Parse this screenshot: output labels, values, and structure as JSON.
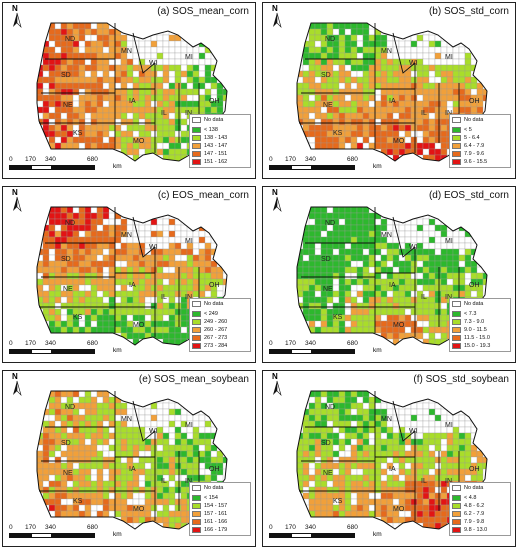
{
  "colors": {
    "c1": "#2db82d",
    "c2": "#a9dd2a",
    "c3": "#f1a03a",
    "c4": "#e66a1c",
    "c5": "#e21414",
    "nodata": "#ffffff",
    "border": "#111111",
    "county": "#9a9a9a"
  },
  "north_label": "N",
  "scale": {
    "ticks": [
      "0",
      "170",
      "340",
      "680"
    ],
    "unit": "km"
  },
  "state_labels": [
    "ND",
    "MN",
    "SD",
    "WI",
    "MI",
    "NE",
    "IA",
    "IL",
    "IN",
    "OH",
    "KS",
    "MO"
  ],
  "panels": [
    {
      "id": "a",
      "title": "(a) SOS_mean_corn",
      "legend": [
        "No data",
        "< 138",
        "138 - 143",
        "143 - 147",
        "147 - 151",
        "151 - 162"
      ],
      "pattern": "west_high"
    },
    {
      "id": "b",
      "title": "(b) SOS_std_corn",
      "legend": [
        "No data",
        "< 5",
        "5 - 6.4",
        "6.4 - 7.9",
        "7.9 - 9.6",
        "9.6 - 15.5"
      ],
      "pattern": "south_high"
    },
    {
      "id": "c",
      "title": "(c) EOS_mean_corn",
      "legend": [
        "No data",
        "< 249",
        "249 - 260",
        "260 - 267",
        "267 - 273",
        "273 - 284"
      ],
      "pattern": "north_high"
    },
    {
      "id": "d",
      "title": "(d) EOS_std_corn",
      "legend": [
        "No data",
        "< 7.3",
        "7.3 - 9.0",
        "9.0 - 11.5",
        "11.5 - 15.0",
        "15.0 - 19.3"
      ],
      "pattern": "south_mid"
    },
    {
      "id": "e",
      "title": "(e) SOS_mean_soybean",
      "legend": [
        "No data",
        "< 154",
        "154 - 157",
        "157 - 161",
        "161 - 166",
        "166 - 179"
      ],
      "pattern": "east_low"
    },
    {
      "id": "f",
      "title": "(f) SOS_std_soybean",
      "legend": [
        "No data",
        "< 4.8",
        "4.8 - 6.2",
        "6.2 - 7.9",
        "7.9 - 9.8",
        "9.8 - 13.0"
      ],
      "pattern": "mixed_south"
    }
  ]
}
